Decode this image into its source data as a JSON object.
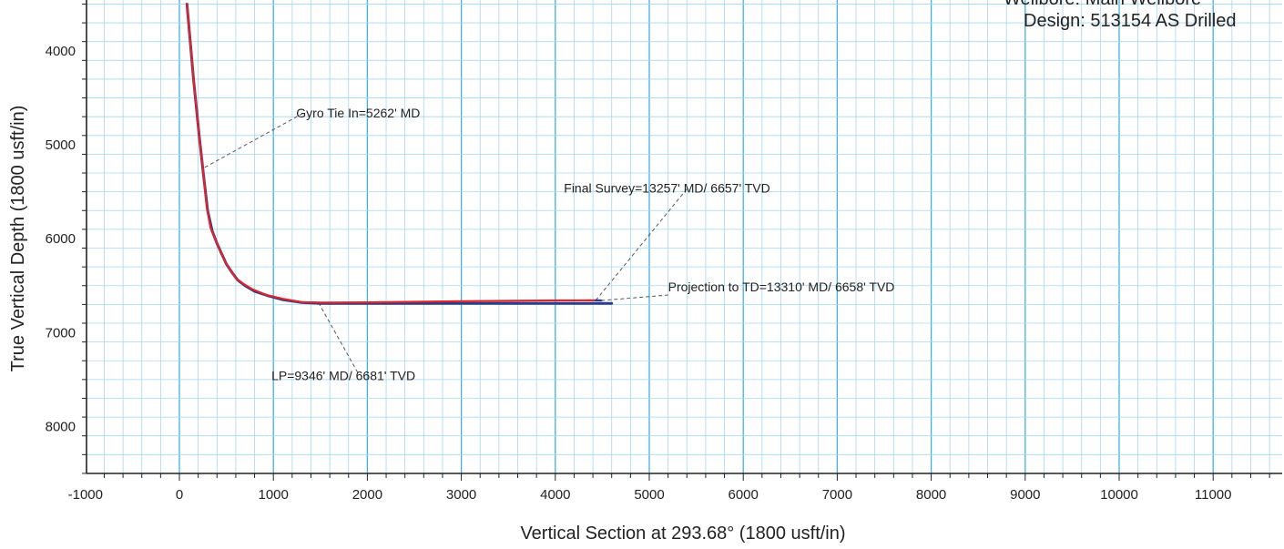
{
  "header": {
    "wellbore_label": "Wellbore:",
    "wellbore_value": "Main Wellbore",
    "design_label": "Design:",
    "design_value": "513154 AS Drilled"
  },
  "chart_data": {
    "type": "line",
    "xlabel": "Vertical Section at 293.68° (1800 usft/in)",
    "ylabel": "True Vertical Depth (1800 usft/in)",
    "xlim": [
      -1000,
      11700
    ],
    "ylim": [
      8500,
      3500
    ],
    "y_inverted": true,
    "grid": true,
    "x_ticks": [
      -1000,
      0,
      1000,
      2000,
      3000,
      4000,
      5000,
      6000,
      7000,
      8000,
      9000,
      10000,
      11000
    ],
    "y_ticks": [
      4000,
      5000,
      6000,
      7000,
      8000
    ],
    "colors": {
      "survey": "#e0242a",
      "plan": "#2a3c8c",
      "grid_major": "#3fb0e6",
      "grid_minor": "#a6d6f1",
      "leader": "#555555"
    },
    "series": [
      {
        "id": "plan",
        "x": [
          80,
          150,
          210,
          260,
          300,
          350,
          400,
          450,
          500,
          560,
          620,
          700,
          800,
          950,
          1100,
          1300,
          1500,
          2000,
          3000,
          4000,
          4600
        ],
        "y": [
          3500,
          4300,
          4900,
          5350,
          5700,
          5920,
          6050,
          6160,
          6270,
          6360,
          6440,
          6500,
          6560,
          6610,
          6650,
          6680,
          6690,
          6690,
          6690,
          6690,
          6690
        ]
      },
      {
        "id": "survey",
        "x": [
          80,
          150,
          210,
          260,
          290,
          330,
          380,
          430,
          480,
          540,
          600,
          680,
          780,
          930,
          1100,
          1300,
          1500,
          2000,
          3000,
          4000,
          4430
        ],
        "y": [
          3500,
          4300,
          4900,
          5350,
          5650,
          5880,
          6000,
          6120,
          6230,
          6330,
          6420,
          6480,
          6540,
          6600,
          6640,
          6675,
          6681,
          6678,
          6665,
          6658,
          6657
        ]
      },
      {
        "id": "projection",
        "x": [
          4430,
          4490
        ],
        "y": [
          6657,
          6658
        ]
      }
    ],
    "annotations": [
      {
        "id": "gyro",
        "text": "Gyro Tie In=5262' MD",
        "point": [
          270,
          5240
        ],
        "label_at": [
          1340,
          4650
        ]
      },
      {
        "id": "final",
        "text": "Final Survey=13257' MD/ 6657' TVD",
        "point": [
          4430,
          6657
        ],
        "label_at": [
          5400,
          5470
        ]
      },
      {
        "id": "proj",
        "text": "Projection to TD=13310' MD/ 6658' TVD",
        "point": [
          4490,
          6658
        ],
        "label_at": [
          5200,
          6600
        ]
      },
      {
        "id": "lp",
        "text": "LP=9346' MD/ 6681' TVD",
        "point": [
          1480,
          6681
        ],
        "label_at": [
          1900,
          7430
        ]
      }
    ]
  }
}
